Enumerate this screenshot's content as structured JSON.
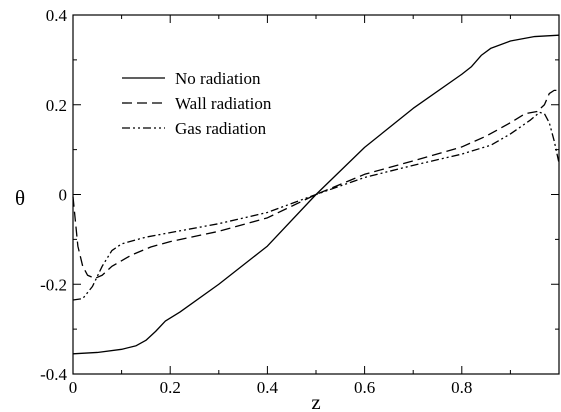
{
  "chart_data": {
    "type": "line",
    "title": "",
    "xlabel": "z",
    "ylabel": "θ",
    "xlim": [
      0,
      1
    ],
    "ylim": [
      -0.4,
      0.4
    ],
    "x_ticks": [
      0,
      0.2,
      0.4,
      0.6,
      0.8
    ],
    "x_tick_labels": [
      "0",
      "0.2",
      "0.4",
      "0.6",
      "0.8"
    ],
    "y_ticks": [
      -0.4,
      -0.2,
      0,
      0.2,
      0.4
    ],
    "y_tick_labels": [
      "-0.4",
      "-0.2",
      "0",
      "0.2",
      "0.4"
    ],
    "grid": false,
    "legend_position": "upper-left",
    "series": [
      {
        "name": "No radiation",
        "dash": "solid",
        "points": [
          [
            0,
            -0.355
          ],
          [
            0.05,
            -0.352
          ],
          [
            0.1,
            -0.345
          ],
          [
            0.13,
            -0.337
          ],
          [
            0.15,
            -0.325
          ],
          [
            0.17,
            -0.305
          ],
          [
            0.19,
            -0.282
          ],
          [
            0.22,
            -0.262
          ],
          [
            0.3,
            -0.2
          ],
          [
            0.4,
            -0.115
          ],
          [
            0.5,
            0
          ],
          [
            0.6,
            0.105
          ],
          [
            0.7,
            0.192
          ],
          [
            0.8,
            0.268
          ],
          [
            0.82,
            0.285
          ],
          [
            0.84,
            0.31
          ],
          [
            0.86,
            0.326
          ],
          [
            0.9,
            0.342
          ],
          [
            0.95,
            0.352
          ],
          [
            1.0,
            0.355
          ]
        ]
      },
      {
        "name": "Wall radiation",
        "dash": "dashed",
        "points": [
          [
            0,
            -0.005
          ],
          [
            0.005,
            -0.06
          ],
          [
            0.01,
            -0.115
          ],
          [
            0.02,
            -0.16
          ],
          [
            0.03,
            -0.18
          ],
          [
            0.045,
            -0.187
          ],
          [
            0.06,
            -0.18
          ],
          [
            0.08,
            -0.16
          ],
          [
            0.12,
            -0.135
          ],
          [
            0.16,
            -0.117
          ],
          [
            0.2,
            -0.105
          ],
          [
            0.3,
            -0.082
          ],
          [
            0.4,
            -0.052
          ],
          [
            0.5,
            0
          ],
          [
            0.6,
            0.045
          ],
          [
            0.7,
            0.075
          ],
          [
            0.8,
            0.106
          ],
          [
            0.85,
            0.13
          ],
          [
            0.9,
            0.16
          ],
          [
            0.93,
            0.18
          ],
          [
            0.955,
            0.185
          ],
          [
            0.97,
            0.2
          ],
          [
            0.98,
            0.225
          ],
          [
            0.99,
            0.232
          ],
          [
            1.0,
            0.232
          ]
        ]
      },
      {
        "name": "Gas radiation",
        "dash": "dash-dot-dot",
        "points": [
          [
            0,
            -0.235
          ],
          [
            0.02,
            -0.232
          ],
          [
            0.04,
            -0.205
          ],
          [
            0.06,
            -0.16
          ],
          [
            0.08,
            -0.125
          ],
          [
            0.1,
            -0.11
          ],
          [
            0.15,
            -0.095
          ],
          [
            0.2,
            -0.085
          ],
          [
            0.3,
            -0.065
          ],
          [
            0.4,
            -0.04
          ],
          [
            0.5,
            0
          ],
          [
            0.6,
            0.038
          ],
          [
            0.7,
            0.065
          ],
          [
            0.8,
            0.09
          ],
          [
            0.86,
            0.11
          ],
          [
            0.9,
            0.135
          ],
          [
            0.94,
            0.165
          ],
          [
            0.96,
            0.183
          ],
          [
            0.97,
            0.18
          ],
          [
            0.98,
            0.16
          ],
          [
            0.99,
            0.12
          ],
          [
            1.0,
            0.07
          ]
        ]
      }
    ]
  }
}
